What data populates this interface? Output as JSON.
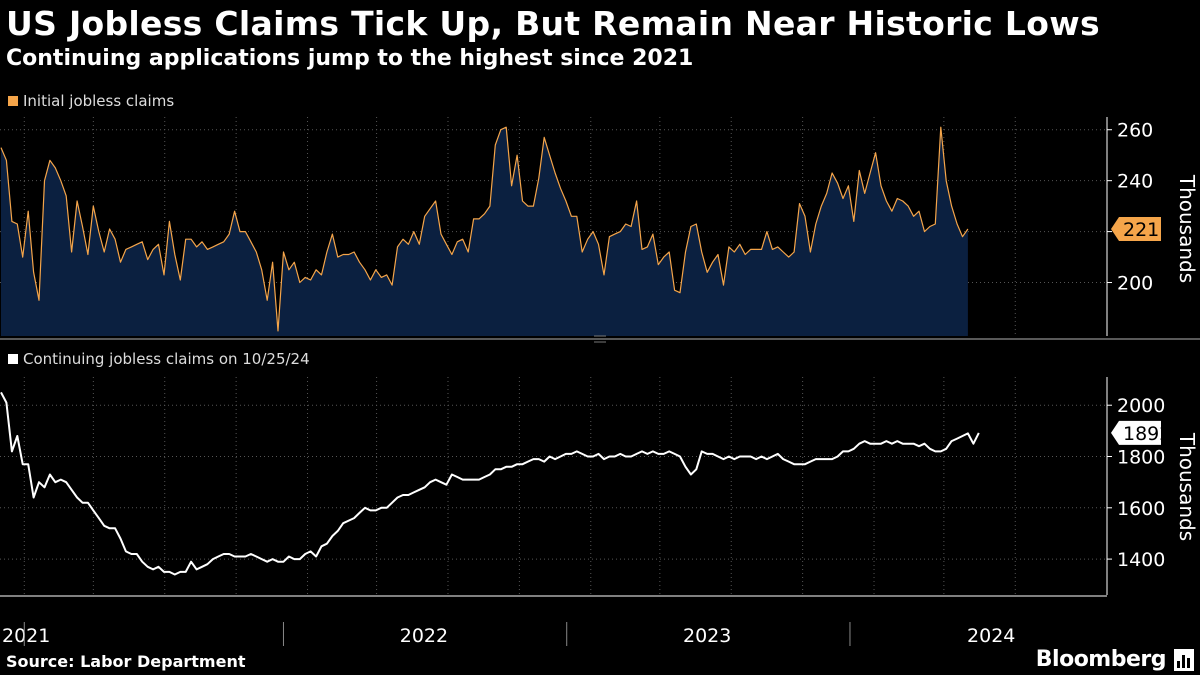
{
  "header": {
    "title": "US Jobless Claims Tick Up, But Remain Near Historic Lows",
    "subtitle": "Continuing applications jump to the highest since 2021"
  },
  "footer": {
    "source": "Source: Labor Department",
    "brand": "Bloomberg"
  },
  "colors": {
    "background": "#000000",
    "initial_line": "#f5a54a",
    "initial_fill": "#0b2040",
    "continuing_line": "#ffffff",
    "grid": "#555555"
  },
  "chart_data": [
    {
      "type": "area",
      "legend": "Initial jobless claims",
      "ylabel": "Thousands",
      "yticks": [
        200,
        240,
        260
      ],
      "yticks_all": [
        200,
        220,
        240,
        260
      ],
      "ylim": [
        179,
        265
      ],
      "x_date_range": [
        "2021-01-02",
        "2024-10-26"
      ],
      "last_value_label": "221",
      "series": [
        {
          "name": "Initial jobless claims",
          "x_start": "2021-01-02",
          "x_step_days": 7,
          "values": [
            253,
            248,
            224,
            223,
            210,
            228,
            204,
            193,
            240,
            248,
            245,
            240,
            234,
            212,
            232,
            222,
            211,
            230,
            220,
            212,
            221,
            217,
            208,
            213,
            214,
            215,
            216,
            209,
            213,
            215,
            203,
            224,
            211,
            201,
            217,
            217,
            214,
            216,
            213,
            214,
            215,
            216,
            219,
            228,
            220,
            220,
            216,
            212,
            205,
            193,
            208,
            181,
            212,
            205,
            208,
            200,
            202,
            201,
            205,
            203,
            212,
            219,
            210,
            211,
            211,
            212,
            208,
            205,
            201,
            205,
            202,
            203,
            199,
            214,
            217,
            215,
            220,
            215,
            226,
            229,
            232,
            219,
            215,
            211,
            216,
            217,
            212,
            225,
            225,
            227,
            230,
            254,
            260,
            261,
            238,
            250,
            232,
            230,
            230,
            241,
            257,
            250,
            243,
            237,
            232,
            226,
            226,
            212,
            217,
            220,
            215,
            203,
            218,
            219,
            220,
            223,
            222,
            232,
            213,
            214,
            219,
            207,
            210,
            212,
            197,
            196,
            212,
            222,
            223,
            212,
            204,
            208,
            211,
            199,
            214,
            212,
            215,
            211,
            213,
            213,
            213,
            220,
            213,
            214,
            212,
            210,
            212,
            231,
            226,
            212,
            223,
            230,
            235,
            243,
            239,
            233,
            238,
            224,
            244,
            235,
            243,
            251,
            238,
            232,
            228,
            233,
            232,
            230,
            226,
            228,
            220,
            222,
            223,
            261,
            240,
            230,
            223,
            218,
            221
          ]
        }
      ]
    },
    {
      "type": "line",
      "legend": "Continuing jobless claims on 10/25/24",
      "ylabel": "Thousands",
      "yticks": [
        1400,
        1600,
        1800,
        2000
      ],
      "ylim": [
        1260,
        2110
      ],
      "x_date_range": [
        "2021-01-02",
        "2024-10-26"
      ],
      "xticks": [
        "2021",
        "2022",
        "2023",
        "2024"
      ],
      "last_value_label": "1892",
      "series": [
        {
          "name": "Continuing jobless claims",
          "x_start": "2021-01-02",
          "x_step_days": 7,
          "values": [
            2050,
            2010,
            1820,
            1880,
            1770,
            1770,
            1640,
            1700,
            1680,
            1730,
            1700,
            1710,
            1700,
            1670,
            1640,
            1620,
            1620,
            1590,
            1560,
            1530,
            1520,
            1520,
            1480,
            1430,
            1420,
            1420,
            1390,
            1370,
            1360,
            1370,
            1350,
            1350,
            1340,
            1350,
            1350,
            1390,
            1360,
            1370,
            1380,
            1400,
            1410,
            1420,
            1420,
            1410,
            1410,
            1410,
            1420,
            1410,
            1400,
            1390,
            1400,
            1390,
            1390,
            1410,
            1400,
            1400,
            1420,
            1430,
            1410,
            1450,
            1460,
            1490,
            1510,
            1540,
            1550,
            1560,
            1580,
            1600,
            1590,
            1590,
            1600,
            1600,
            1620,
            1640,
            1650,
            1650,
            1660,
            1670,
            1680,
            1700,
            1710,
            1700,
            1690,
            1730,
            1720,
            1710,
            1710,
            1710,
            1710,
            1720,
            1730,
            1750,
            1750,
            1760,
            1760,
            1770,
            1770,
            1780,
            1790,
            1790,
            1780,
            1800,
            1790,
            1800,
            1810,
            1810,
            1820,
            1810,
            1800,
            1800,
            1810,
            1790,
            1800,
            1800,
            1810,
            1800,
            1800,
            1810,
            1820,
            1810,
            1820,
            1810,
            1810,
            1820,
            1810,
            1800,
            1760,
            1730,
            1750,
            1820,
            1810,
            1810,
            1800,
            1790,
            1800,
            1790,
            1800,
            1800,
            1800,
            1790,
            1800,
            1790,
            1800,
            1810,
            1790,
            1780,
            1770,
            1770,
            1770,
            1780,
            1790,
            1790,
            1790,
            1790,
            1800,
            1820,
            1820,
            1830,
            1850,
            1860,
            1850,
            1850,
            1850,
            1860,
            1850,
            1860,
            1850,
            1850,
            1850,
            1840,
            1850,
            1830,
            1820,
            1820,
            1830,
            1860,
            1870,
            1880,
            1890,
            1850,
            1892
          ]
        }
      ]
    }
  ]
}
